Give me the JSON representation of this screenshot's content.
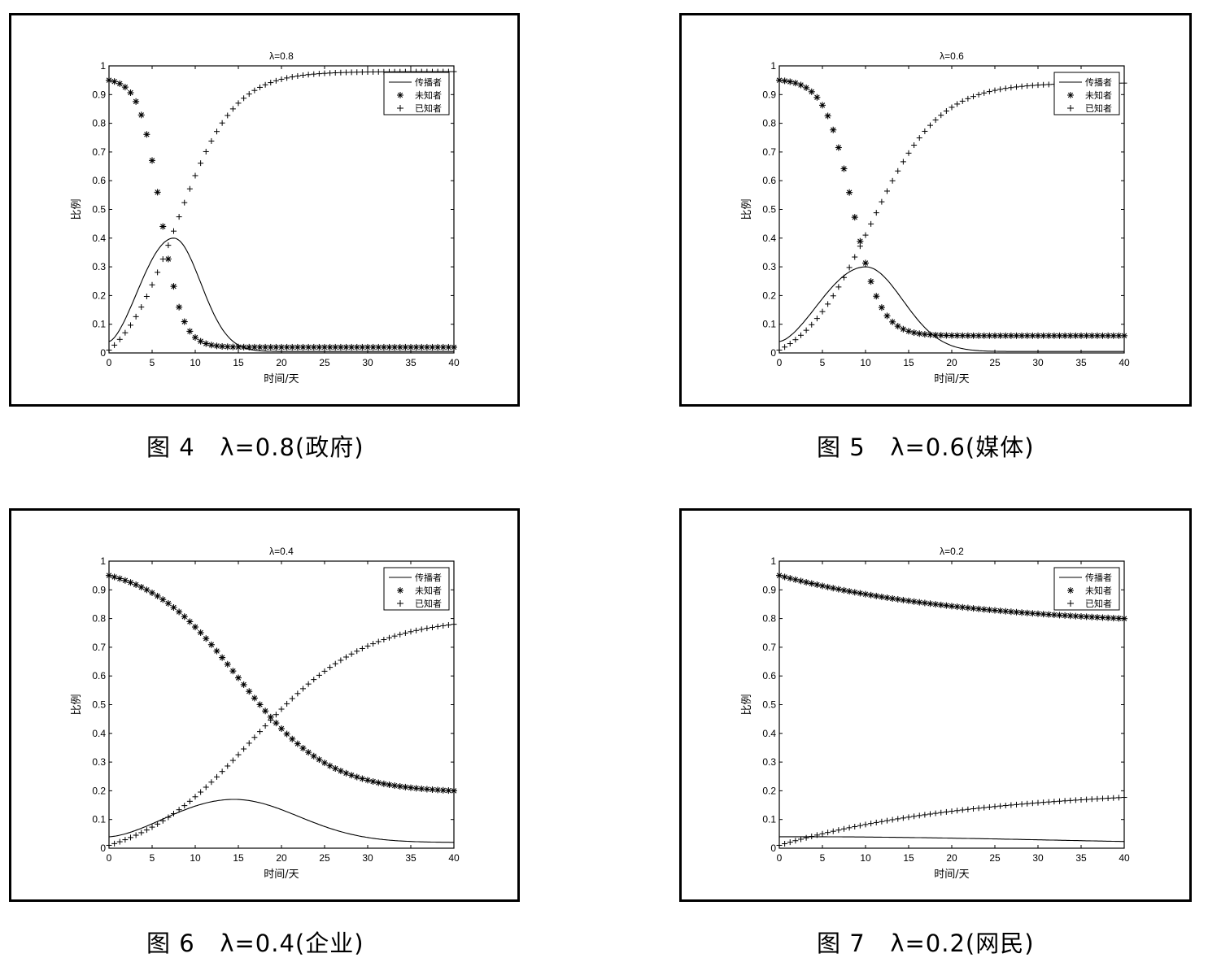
{
  "chart_data": [
    {
      "type": "line",
      "title": "λ=0.8",
      "caption": "图 4   λ=0.8(政府)",
      "xlabel": "时间/天",
      "ylabel": "比例",
      "xlim": [
        0,
        40
      ],
      "ylim": [
        0,
        1
      ],
      "xticks": [
        "0",
        "5",
        "10",
        "15",
        "20",
        "25",
        "30",
        "35",
        "40"
      ],
      "yticks": [
        "0",
        "0.1",
        "0.2",
        "0.3",
        "0.4",
        "0.5",
        "0.6",
        "0.7",
        "0.8",
        "0.9",
        "1"
      ],
      "legend_position": "top-right",
      "series": [
        {
          "name": "传播者",
          "marker": "line",
          "peak_x": 7.5,
          "peak_y": 0.4,
          "width": 4.2,
          "start": 0.04,
          "end": 0.005
        },
        {
          "name": "未知者",
          "marker": "asterisk",
          "start": 0.95,
          "end": 0.02,
          "mid_x": 6.0,
          "rate": 0.82
        },
        {
          "name": "已知者",
          "marker": "plus",
          "start": 0.01,
          "end": 0.98,
          "mid_x": 7.8,
          "rate": 0.3
        }
      ]
    },
    {
      "type": "line",
      "title": "λ=0.6",
      "caption": "图 5   λ=0.6(媒体)",
      "xlabel": "时间/天",
      "ylabel": "比例",
      "xlim": [
        0,
        40
      ],
      "ylim": [
        0,
        1
      ],
      "xticks": [
        "0",
        "5",
        "10",
        "15",
        "20",
        "25",
        "30",
        "35",
        "40"
      ],
      "yticks": [
        "0",
        "0.1",
        "0.2",
        "0.3",
        "0.4",
        "0.5",
        "0.6",
        "0.7",
        "0.8",
        "0.9",
        "1"
      ],
      "legend_position": "top-right",
      "series": [
        {
          "name": "传播者",
          "marker": "line",
          "peak_x": 10.0,
          "peak_y": 0.3,
          "width": 5.8,
          "start": 0.04,
          "end": 0.005
        },
        {
          "name": "未知者",
          "marker": "asterisk",
          "start": 0.95,
          "end": 0.06,
          "mid_x": 8.5,
          "rate": 0.62
        },
        {
          "name": "已知者",
          "marker": "plus",
          "start": 0.01,
          "end": 0.94,
          "mid_x": 10.5,
          "rate": 0.25
        }
      ]
    },
    {
      "type": "line",
      "title": "λ=0.4",
      "caption": "图 6   λ=0.4(企业)",
      "xlabel": "时间/天",
      "ylabel": "比例",
      "xlim": [
        0,
        40
      ],
      "ylim": [
        0,
        1
      ],
      "xticks": [
        "0",
        "5",
        "10",
        "15",
        "20",
        "25",
        "30",
        "35",
        "40"
      ],
      "yticks": [
        "0",
        "0.1",
        "0.2",
        "0.3",
        "0.4",
        "0.5",
        "0.6",
        "0.7",
        "0.8",
        "0.9",
        "1"
      ],
      "legend_position": "top-right",
      "series": [
        {
          "name": "传播者",
          "marker": "line",
          "peak_x": 14.5,
          "peak_y": 0.17,
          "width": 10.0,
          "start": 0.04,
          "end": 0.02
        },
        {
          "name": "未知者",
          "marker": "asterisk",
          "start": 0.95,
          "end": 0.2,
          "mid_x": 15.0,
          "rate": 0.19
        },
        {
          "name": "已知者",
          "marker": "plus",
          "start": 0.01,
          "end": 0.78,
          "mid_x": 16.5,
          "rate": 0.15
        }
      ]
    },
    {
      "type": "line",
      "title": "λ=0.2",
      "caption": "图 7   λ=0.2(网民)",
      "xlabel": "时间/天",
      "ylabel": "比例",
      "xlim": [
        0,
        40
      ],
      "ylim": [
        0,
        1
      ],
      "xticks": [
        "0",
        "5",
        "10",
        "15",
        "20",
        "25",
        "30",
        "35",
        "40"
      ],
      "yticks": [
        "0",
        "0.1",
        "0.2",
        "0.3",
        "0.4",
        "0.5",
        "0.6",
        "0.7",
        "0.8",
        "0.9",
        "1"
      ],
      "legend_position": "top-right",
      "series": [
        {
          "name": "传播者",
          "marker": "line",
          "peak_x": 2.0,
          "peak_y": 0.04,
          "width": 40.0,
          "start": 0.04,
          "end": 0.01
        },
        {
          "name": "未知者",
          "marker": "asterisk",
          "start": 0.95,
          "end": 0.77,
          "mid_x": 0,
          "rate": 0.0
        },
        {
          "name": "已知者",
          "marker": "plus",
          "start": 0.01,
          "end": 0.21,
          "mid_x": 0,
          "rate": 0.0
        }
      ]
    }
  ]
}
